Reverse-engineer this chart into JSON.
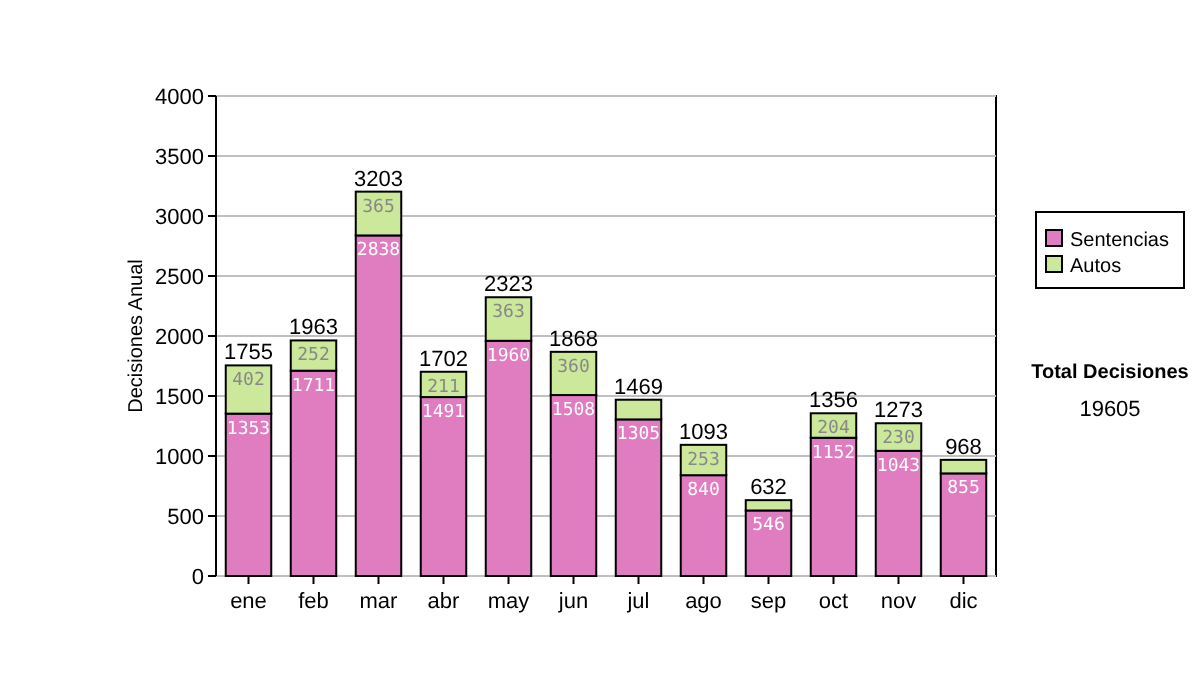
{
  "chart_data": {
    "type": "bar",
    "stacked": true,
    "ylabel": "Decisiones Anual",
    "categories": [
      "ene",
      "feb",
      "mar",
      "abr",
      "may",
      "jun",
      "jul",
      "ago",
      "sep",
      "oct",
      "nov",
      "dic"
    ],
    "series": [
      {
        "name": "Sentencias",
        "color": "#e07cc0",
        "values": [
          1353,
          1711,
          2838,
          1491,
          1960,
          1508,
          1305,
          840,
          546,
          1152,
          1043,
          855
        ],
        "value_labels": [
          "1353",
          "1711",
          "2838",
          "1491",
          "1960",
          "1508",
          "1305",
          "840",
          "546",
          "1152",
          "1043",
          "855"
        ]
      },
      {
        "name": "Autos",
        "color": "#cce89a",
        "values": [
          402,
          252,
          365,
          211,
          363,
          360,
          164,
          253,
          86,
          204,
          230,
          113
        ],
        "value_labels": [
          "402",
          "252",
          "365",
          "211",
          "363",
          "360",
          null,
          "253",
          null,
          "204",
          "230",
          null
        ]
      }
    ],
    "totals": [
      "1755",
      "1963",
      "3203",
      "1702",
      "2323",
      "1868",
      "1469",
      "1093",
      "632",
      "1356",
      "1273",
      "968"
    ],
    "ylim": [
      0,
      4000
    ],
    "yticks": [
      0,
      500,
      1000,
      1500,
      2000,
      2500,
      3000,
      3500,
      4000
    ],
    "grid": "y",
    "legend": "right",
    "annotations": [
      "Total Decisiones",
      "19605"
    ]
  }
}
